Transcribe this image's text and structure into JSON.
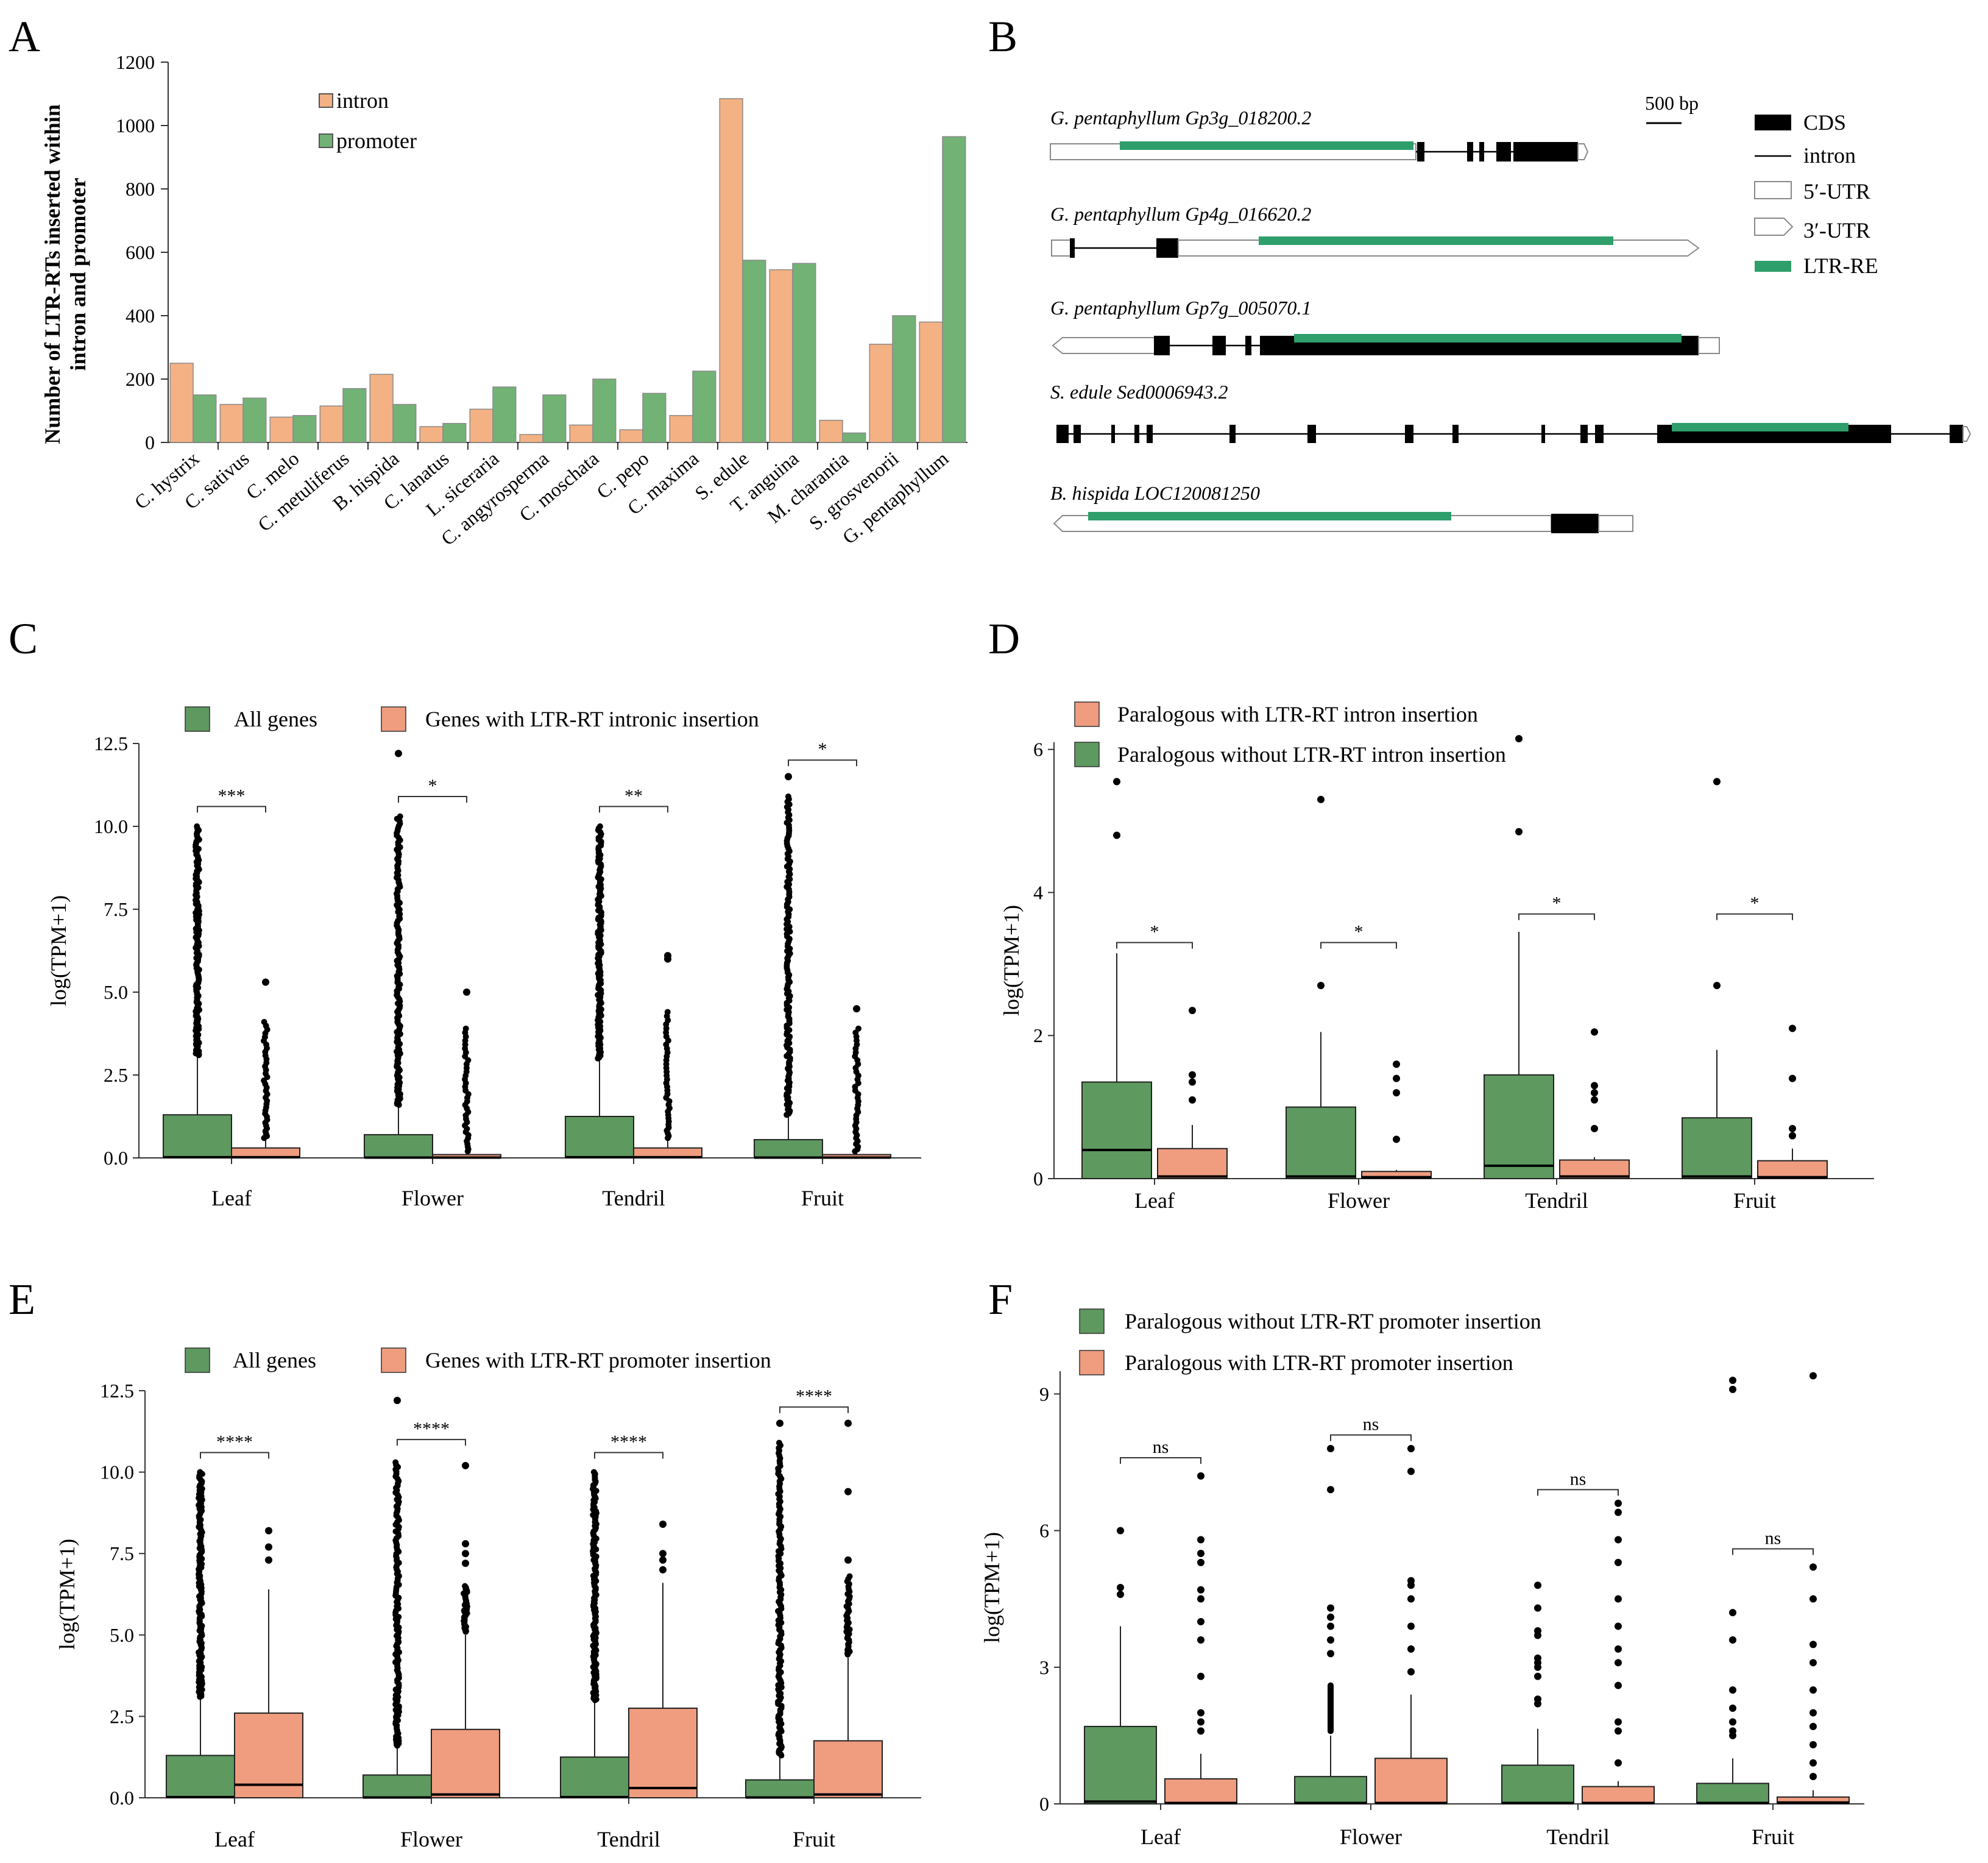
{
  "colors": {
    "intron": "#F4B183",
    "promoter": "#72B275",
    "green": "#5E9960",
    "salmon": "#EF9C7F",
    "cds": "#000000",
    "ltr_re": "#2E9E6B",
    "outline": "#555555"
  },
  "panel_labels": [
    "A",
    "B",
    "C",
    "D",
    "E",
    "F"
  ],
  "chart_data": [
    {
      "panel": "A",
      "type": "bar",
      "ylabel_lines": [
        "Number of LTR-RTs inserted within",
        "intron and promoter"
      ],
      "ylim": [
        0,
        1200
      ],
      "yticks": [
        "0",
        "200",
        "400",
        "600",
        "800",
        "1000",
        "1200"
      ],
      "ytick_values": [
        0,
        200,
        400,
        600,
        800,
        1000,
        1200
      ],
      "categories": [
        "C. hystrix",
        "C. sativus",
        "C. melo",
        "C. metuliferus",
        "B. hispida",
        "C. lanatus",
        "L. siceraria",
        "C. angyrosperma",
        "C. moschata",
        "C. pepo",
        "C. maxima",
        "S. edule",
        "T. anguina",
        "M. charantia",
        "S. grosvenorii",
        "G. pentaphyllum"
      ],
      "series": [
        {
          "name": "intron",
          "color": "#F4B183",
          "values": [
            250,
            120,
            80,
            115,
            215,
            50,
            105,
            25,
            55,
            40,
            85,
            1085,
            545,
            70,
            310,
            380
          ]
        },
        {
          "name": "promoter",
          "color": "#72B275",
          "values": [
            150,
            140,
            85,
            170,
            120,
            60,
            175,
            150,
            200,
            155,
            225,
            575,
            565,
            30,
            400,
            965
          ]
        }
      ]
    },
    {
      "panel": "C",
      "type": "box",
      "ylabel": "log(TPM+1)",
      "ylim": [
        0,
        12.5
      ],
      "yticks": [
        "0.0",
        "2.5",
        "5.0",
        "7.5",
        "10.0",
        "12.5"
      ],
      "ytick_values": [
        0,
        2.5,
        5.0,
        7.5,
        10.0,
        12.5
      ],
      "categories": [
        "Leaf",
        "Flower",
        "Tendril",
        "Fruit"
      ],
      "legend": [
        "All genes",
        "Genes with LTR-RT intronic insertion"
      ],
      "significance": [
        "***",
        "*",
        "**",
        "*"
      ],
      "sig_y": [
        10.6,
        10.9,
        10.6,
        12.0
      ],
      "series": [
        {
          "name": "All genes",
          "color": "#5E9960",
          "boxes": [
            {
              "q1": 0,
              "median": 0.02,
              "q3": 1.3,
              "whisker_low": 0,
              "whisker_high": 3.1,
              "outlier_range": [
                3.1,
                10.0
              ],
              "outliers": []
            },
            {
              "q1": 0,
              "median": 0.01,
              "q3": 0.7,
              "whisker_low": 0,
              "whisker_high": 1.6,
              "outlier_range": [
                1.6,
                10.3
              ],
              "outliers": [
                12.2
              ]
            },
            {
              "q1": 0,
              "median": 0.02,
              "q3": 1.25,
              "whisker_low": 0,
              "whisker_high": 3.0,
              "outlier_range": [
                3.0,
                10.0
              ],
              "outliers": []
            },
            {
              "q1": 0,
              "median": 0.01,
              "q3": 0.55,
              "whisker_low": 0,
              "whisker_high": 1.3,
              "outlier_range": [
                1.3,
                10.9
              ],
              "outliers": [
                11.5
              ]
            }
          ]
        },
        {
          "name": "Genes with LTR-RT intronic insertion",
          "color": "#EF9C7F",
          "boxes": [
            {
              "q1": 0,
              "median": 0.02,
              "q3": 0.3,
              "whisker_low": 0,
              "whisker_high": 0.6,
              "outlier_range": [
                0.6,
                4.1
              ],
              "outliers": [
                5.3
              ]
            },
            {
              "q1": 0,
              "median": 0.01,
              "q3": 0.1,
              "whisker_low": 0,
              "whisker_high": 0.2,
              "outlier_range": [
                0.2,
                3.9
              ],
              "outliers": [
                5.0
              ]
            },
            {
              "q1": 0,
              "median": 0.02,
              "q3": 0.3,
              "whisker_low": 0,
              "whisker_high": 0.6,
              "outlier_range": [
                0.6,
                4.4
              ],
              "outliers": [
                6.1,
                6.0
              ]
            },
            {
              "q1": 0,
              "median": 0.01,
              "q3": 0.1,
              "whisker_low": 0,
              "whisker_high": 0.2,
              "outlier_range": [
                0.2,
                3.9
              ],
              "outliers": [
                4.5
              ]
            }
          ]
        }
      ]
    },
    {
      "panel": "D",
      "type": "box",
      "ylabel": "log(TPM+1)",
      "ylim": [
        0,
        6.1
      ],
      "yticks": [
        "0",
        "2",
        "4",
        "6"
      ],
      "ytick_values": [
        0,
        2,
        4,
        6
      ],
      "categories": [
        "Leaf",
        "Flower",
        "Tendril",
        "Fruit"
      ],
      "legend": [
        "Paralogous with LTR-RT intron insertion",
        "Paralogous without LTR-RT intron insertion"
      ],
      "significance": [
        "*",
        "*",
        "*",
        "*"
      ],
      "sig_y": [
        3.3,
        3.3,
        3.7,
        3.7
      ],
      "series": [
        {
          "name": "Paralogous without LTR-RT intron insertion",
          "color": "#5E9960",
          "boxes": [
            {
              "q1": 0,
              "median": 0.4,
              "q3": 1.35,
              "whisker_low": 0,
              "whisker_high": 3.15,
              "outlier_range": null,
              "outliers": [
                4.8,
                5.55
              ]
            },
            {
              "q1": 0,
              "median": 0.03,
              "q3": 1.0,
              "whisker_low": 0,
              "whisker_high": 2.05,
              "outlier_range": null,
              "outliers": [
                2.7,
                5.3
              ]
            },
            {
              "q1": 0,
              "median": 0.18,
              "q3": 1.45,
              "whisker_low": 0,
              "whisker_high": 3.45,
              "outlier_range": null,
              "outliers": [
                4.85,
                6.15
              ]
            },
            {
              "q1": 0,
              "median": 0.03,
              "q3": 0.85,
              "whisker_low": 0,
              "whisker_high": 1.8,
              "outlier_range": null,
              "outliers": [
                2.7,
                5.55
              ]
            }
          ]
        },
        {
          "name": "Paralogous with LTR-RT intron insertion",
          "color": "#EF9C7F",
          "boxes": [
            {
              "q1": 0,
              "median": 0.03,
              "q3": 0.42,
              "whisker_low": 0,
              "whisker_high": 0.75,
              "outlier_range": null,
              "outliers": [
                1.1,
                1.35,
                1.45,
                2.35
              ]
            },
            {
              "q1": 0,
              "median": 0.02,
              "q3": 0.1,
              "whisker_low": 0,
              "whisker_high": 0.12,
              "outlier_range": null,
              "outliers": [
                0.55,
                1.2,
                1.4,
                1.6
              ]
            },
            {
              "q1": 0,
              "median": 0.03,
              "q3": 0.26,
              "whisker_low": 0,
              "whisker_high": 0.3,
              "outlier_range": null,
              "outliers": [
                0.7,
                1.1,
                1.2,
                1.3,
                2.05
              ]
            },
            {
              "q1": 0,
              "median": 0.02,
              "q3": 0.25,
              "whisker_low": 0,
              "whisker_high": 0.42,
              "outlier_range": null,
              "outliers": [
                0.6,
                0.7,
                1.4,
                2.1
              ]
            }
          ]
        }
      ]
    },
    {
      "panel": "E",
      "type": "box",
      "ylabel": "log(TPM+1)",
      "ylim": [
        0,
        12.5
      ],
      "yticks": [
        "0.0",
        "2.5",
        "5.0",
        "7.5",
        "10.0",
        "12.5"
      ],
      "ytick_values": [
        0,
        2.5,
        5.0,
        7.5,
        10.0,
        12.5
      ],
      "categories": [
        "Leaf",
        "Flower",
        "Tendril",
        "Fruit"
      ],
      "legend": [
        "All genes",
        "Genes with LTR-RT promoter insertion"
      ],
      "significance": [
        "****",
        "****",
        "****",
        "****"
      ],
      "sig_y": [
        10.6,
        11.0,
        10.6,
        12.0
      ],
      "series": [
        {
          "name": "All genes",
          "color": "#5E9960",
          "boxes": [
            {
              "q1": 0,
              "median": 0.02,
              "q3": 1.3,
              "whisker_low": 0,
              "whisker_high": 3.1,
              "outlier_range": [
                3.1,
                10.0
              ],
              "outliers": []
            },
            {
              "q1": 0,
              "median": 0.01,
              "q3": 0.7,
              "whisker_low": 0,
              "whisker_high": 1.6,
              "outlier_range": [
                1.6,
                10.3
              ],
              "outliers": [
                12.2
              ]
            },
            {
              "q1": 0,
              "median": 0.02,
              "q3": 1.25,
              "whisker_low": 0,
              "whisker_high": 3.0,
              "outlier_range": [
                3.0,
                10.0
              ],
              "outliers": []
            },
            {
              "q1": 0,
              "median": 0.01,
              "q3": 0.55,
              "whisker_low": 0,
              "whisker_high": 1.3,
              "outlier_range": [
                1.3,
                10.9
              ],
              "outliers": [
                11.5
              ]
            }
          ]
        },
        {
          "name": "Genes with LTR-RT promoter insertion",
          "color": "#EF9C7F",
          "boxes": [
            {
              "q1": 0,
              "median": 0.4,
              "q3": 2.6,
              "whisker_low": 0,
              "whisker_high": 6.4,
              "outlier_range": null,
              "outliers": [
                7.3,
                7.7,
                8.2
              ]
            },
            {
              "q1": 0,
              "median": 0.1,
              "q3": 2.1,
              "whisker_low": 0,
              "whisker_high": 5.0,
              "outlier_range": [
                5.1,
                6.5
              ],
              "outliers": [
                7.2,
                7.5,
                7.8,
                10.2
              ]
            },
            {
              "q1": 0,
              "median": 0.3,
              "q3": 2.75,
              "whisker_low": 0,
              "whisker_high": 6.6,
              "outlier_range": null,
              "outliers": [
                7.0,
                7.3,
                7.5,
                8.4
              ]
            },
            {
              "q1": 0,
              "median": 0.1,
              "q3": 1.75,
              "whisker_low": 0,
              "whisker_high": 4.3,
              "outlier_range": [
                4.4,
                6.8
              ],
              "outliers": [
                7.3,
                9.4,
                11.5
              ]
            }
          ]
        }
      ]
    },
    {
      "panel": "F",
      "type": "box",
      "ylabel": "log(TPM+1)",
      "ylim": [
        0,
        9.5
      ],
      "yticks": [
        "0",
        "3",
        "6",
        "9"
      ],
      "ytick_values": [
        0,
        3,
        6,
        9
      ],
      "categories": [
        "Leaf",
        "Flower",
        "Tendril",
        "Fruit"
      ],
      "legend": [
        "Paralogous without LTR-RT promoter insertion",
        "Paralogous with LTR-RT promoter insertion"
      ],
      "significance": [
        "ns",
        "ns",
        "ns",
        "ns"
      ],
      "sig_y": [
        7.6,
        8.1,
        6.9,
        5.6
      ],
      "series": [
        {
          "name": "Paralogous without LTR-RT promoter insertion",
          "color": "#5E9960",
          "boxes": [
            {
              "q1": 0,
              "median": 0.05,
              "q3": 1.7,
              "whisker_low": 0,
              "whisker_high": 3.9,
              "outlier_range": null,
              "outliers": [
                4.6,
                4.75,
                6.0
              ]
            },
            {
              "q1": 0,
              "median": 0.02,
              "q3": 0.6,
              "whisker_low": 0,
              "whisker_high": 1.5,
              "outlier_range": [
                1.6,
                2.6
              ],
              "outliers": [
                3.3,
                3.6,
                3.9,
                4.1,
                4.3,
                6.9,
                7.8
              ]
            },
            {
              "q1": 0,
              "median": 0.02,
              "q3": 0.85,
              "whisker_low": 0,
              "whisker_high": 1.65,
              "outlier_range": null,
              "outliers": [
                2.2,
                2.3,
                2.8,
                3.0,
                3.1,
                3.2,
                3.7,
                3.8,
                4.3,
                4.8
              ]
            },
            {
              "q1": 0,
              "median": 0.02,
              "q3": 0.45,
              "whisker_low": 0,
              "whisker_high": 1.0,
              "outlier_range": null,
              "outliers": [
                1.5,
                1.6,
                1.8,
                2.1,
                2.5,
                3.6,
                4.2,
                9.1,
                9.3
              ]
            }
          ]
        },
        {
          "name": "Paralogous with LTR-RT promoter insertion",
          "color": "#EF9C7F",
          "boxes": [
            {
              "q1": 0,
              "median": 0.02,
              "q3": 0.55,
              "whisker_low": 0,
              "whisker_high": 1.1,
              "outlier_range": null,
              "outliers": [
                1.6,
                1.8,
                2.0,
                2.8,
                3.6,
                4.0,
                4.5,
                4.7,
                5.3,
                5.5,
                5.8,
                7.2
              ]
            },
            {
              "q1": 0,
              "median": 0.02,
              "q3": 1.0,
              "whisker_low": 0,
              "whisker_high": 2.4,
              "outlier_range": null,
              "outliers": [
                2.9,
                3.4,
                3.9,
                4.5,
                4.8,
                4.9,
                7.3,
                7.8
              ]
            },
            {
              "q1": 0,
              "median": 0.02,
              "q3": 0.38,
              "whisker_low": 0,
              "whisker_high": 0.5,
              "outlier_range": null,
              "outliers": [
                0.9,
                1.6,
                1.8,
                2.6,
                3.1,
                3.4,
                3.9,
                4.5,
                5.3,
                5.8,
                6.4,
                6.6
              ]
            },
            {
              "q1": 0,
              "median": 0.03,
              "q3": 0.15,
              "whisker_low": 0,
              "whisker_high": 0.3,
              "outlier_range": null,
              "outliers": [
                0.6,
                0.9,
                1.3,
                1.7,
                2.0,
                2.5,
                3.1,
                3.5,
                4.5,
                5.2,
                9.4
              ]
            }
          ]
        }
      ]
    }
  ],
  "gene_panel": {
    "scale_label": "500 bp",
    "legend": [
      "CDS",
      "intron",
      "5′-UTR",
      "3′-UTR",
      "LTR-RE"
    ],
    "genes": [
      {
        "name": "G. pentaphyllum Gp3g_018200.2"
      },
      {
        "name": "G. pentaphyllum Gp4g_016620.2"
      },
      {
        "name": "G. pentaphyllum Gp7g_005070.1"
      },
      {
        "name": "S. edule Sed0006943.2"
      },
      {
        "name": "B. hispida LOC120081250"
      }
    ]
  }
}
